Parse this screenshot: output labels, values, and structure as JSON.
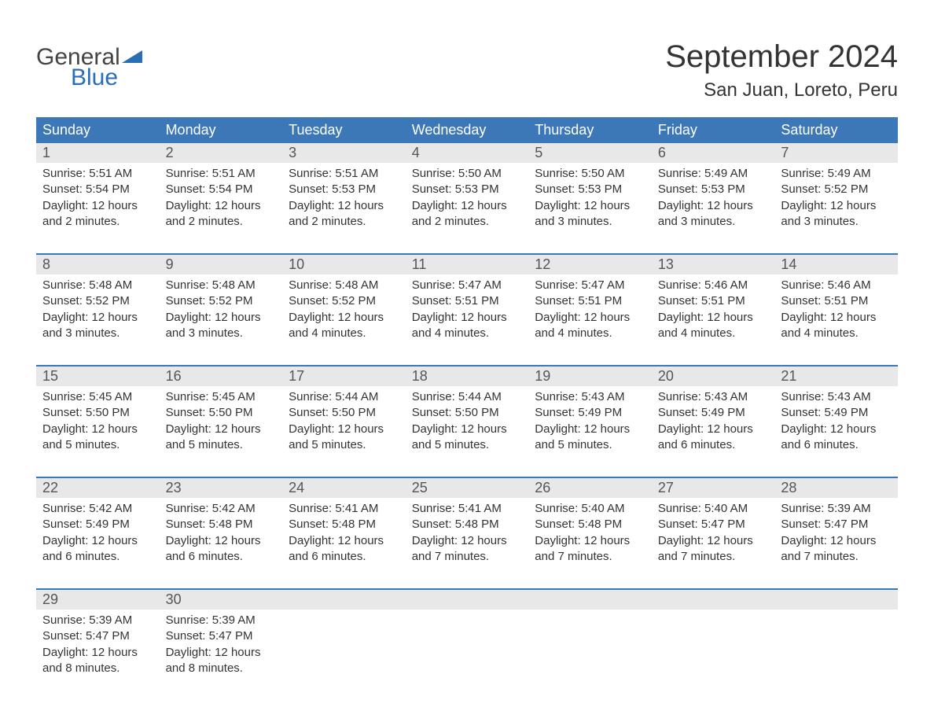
{
  "logo": {
    "general": "General",
    "blue": "Blue",
    "arrow_color": "#2a6eb8"
  },
  "title": "September 2024",
  "location": "San Juan, Loreto, Peru",
  "colors": {
    "header_bg": "#3c78b8",
    "header_text": "#ffffff",
    "daynum_bg": "#e8e8e8",
    "daynum_text": "#555555",
    "body_text": "#333333",
    "sep_line": "#3c78b8",
    "page_bg": "#ffffff"
  },
  "typography": {
    "month_title_fontsize": 40,
    "location_fontsize": 24,
    "day_header_fontsize": 18,
    "daynum_fontsize": 18,
    "body_fontsize": 15
  },
  "day_labels": [
    "Sunday",
    "Monday",
    "Tuesday",
    "Wednesday",
    "Thursday",
    "Friday",
    "Saturday"
  ],
  "weeks": [
    [
      {
        "num": "1",
        "sunrise": "Sunrise: 5:51 AM",
        "sunset": "Sunset: 5:54 PM",
        "daylight": "Daylight: 12 hours and 2 minutes."
      },
      {
        "num": "2",
        "sunrise": "Sunrise: 5:51 AM",
        "sunset": "Sunset: 5:54 PM",
        "daylight": "Daylight: 12 hours and 2 minutes."
      },
      {
        "num": "3",
        "sunrise": "Sunrise: 5:51 AM",
        "sunset": "Sunset: 5:53 PM",
        "daylight": "Daylight: 12 hours and 2 minutes."
      },
      {
        "num": "4",
        "sunrise": "Sunrise: 5:50 AM",
        "sunset": "Sunset: 5:53 PM",
        "daylight": "Daylight: 12 hours and 2 minutes."
      },
      {
        "num": "5",
        "sunrise": "Sunrise: 5:50 AM",
        "sunset": "Sunset: 5:53 PM",
        "daylight": "Daylight: 12 hours and 3 minutes."
      },
      {
        "num": "6",
        "sunrise": "Sunrise: 5:49 AM",
        "sunset": "Sunset: 5:53 PM",
        "daylight": "Daylight: 12 hours and 3 minutes."
      },
      {
        "num": "7",
        "sunrise": "Sunrise: 5:49 AM",
        "sunset": "Sunset: 5:52 PM",
        "daylight": "Daylight: 12 hours and 3 minutes."
      }
    ],
    [
      {
        "num": "8",
        "sunrise": "Sunrise: 5:48 AM",
        "sunset": "Sunset: 5:52 PM",
        "daylight": "Daylight: 12 hours and 3 minutes."
      },
      {
        "num": "9",
        "sunrise": "Sunrise: 5:48 AM",
        "sunset": "Sunset: 5:52 PM",
        "daylight": "Daylight: 12 hours and 3 minutes."
      },
      {
        "num": "10",
        "sunrise": "Sunrise: 5:48 AM",
        "sunset": "Sunset: 5:52 PM",
        "daylight": "Daylight: 12 hours and 4 minutes."
      },
      {
        "num": "11",
        "sunrise": "Sunrise: 5:47 AM",
        "sunset": "Sunset: 5:51 PM",
        "daylight": "Daylight: 12 hours and 4 minutes."
      },
      {
        "num": "12",
        "sunrise": "Sunrise: 5:47 AM",
        "sunset": "Sunset: 5:51 PM",
        "daylight": "Daylight: 12 hours and 4 minutes."
      },
      {
        "num": "13",
        "sunrise": "Sunrise: 5:46 AM",
        "sunset": "Sunset: 5:51 PM",
        "daylight": "Daylight: 12 hours and 4 minutes."
      },
      {
        "num": "14",
        "sunrise": "Sunrise: 5:46 AM",
        "sunset": "Sunset: 5:51 PM",
        "daylight": "Daylight: 12 hours and 4 minutes."
      }
    ],
    [
      {
        "num": "15",
        "sunrise": "Sunrise: 5:45 AM",
        "sunset": "Sunset: 5:50 PM",
        "daylight": "Daylight: 12 hours and 5 minutes."
      },
      {
        "num": "16",
        "sunrise": "Sunrise: 5:45 AM",
        "sunset": "Sunset: 5:50 PM",
        "daylight": "Daylight: 12 hours and 5 minutes."
      },
      {
        "num": "17",
        "sunrise": "Sunrise: 5:44 AM",
        "sunset": "Sunset: 5:50 PM",
        "daylight": "Daylight: 12 hours and 5 minutes."
      },
      {
        "num": "18",
        "sunrise": "Sunrise: 5:44 AM",
        "sunset": "Sunset: 5:50 PM",
        "daylight": "Daylight: 12 hours and 5 minutes."
      },
      {
        "num": "19",
        "sunrise": "Sunrise: 5:43 AM",
        "sunset": "Sunset: 5:49 PM",
        "daylight": "Daylight: 12 hours and 5 minutes."
      },
      {
        "num": "20",
        "sunrise": "Sunrise: 5:43 AM",
        "sunset": "Sunset: 5:49 PM",
        "daylight": "Daylight: 12 hours and 6 minutes."
      },
      {
        "num": "21",
        "sunrise": "Sunrise: 5:43 AM",
        "sunset": "Sunset: 5:49 PM",
        "daylight": "Daylight: 12 hours and 6 minutes."
      }
    ],
    [
      {
        "num": "22",
        "sunrise": "Sunrise: 5:42 AM",
        "sunset": "Sunset: 5:49 PM",
        "daylight": "Daylight: 12 hours and 6 minutes."
      },
      {
        "num": "23",
        "sunrise": "Sunrise: 5:42 AM",
        "sunset": "Sunset: 5:48 PM",
        "daylight": "Daylight: 12 hours and 6 minutes."
      },
      {
        "num": "24",
        "sunrise": "Sunrise: 5:41 AM",
        "sunset": "Sunset: 5:48 PM",
        "daylight": "Daylight: 12 hours and 6 minutes."
      },
      {
        "num": "25",
        "sunrise": "Sunrise: 5:41 AM",
        "sunset": "Sunset: 5:48 PM",
        "daylight": "Daylight: 12 hours and 7 minutes."
      },
      {
        "num": "26",
        "sunrise": "Sunrise: 5:40 AM",
        "sunset": "Sunset: 5:48 PM",
        "daylight": "Daylight: 12 hours and 7 minutes."
      },
      {
        "num": "27",
        "sunrise": "Sunrise: 5:40 AM",
        "sunset": "Sunset: 5:47 PM",
        "daylight": "Daylight: 12 hours and 7 minutes."
      },
      {
        "num": "28",
        "sunrise": "Sunrise: 5:39 AM",
        "sunset": "Sunset: 5:47 PM",
        "daylight": "Daylight: 12 hours and 7 minutes."
      }
    ],
    [
      {
        "num": "29",
        "sunrise": "Sunrise: 5:39 AM",
        "sunset": "Sunset: 5:47 PM",
        "daylight": "Daylight: 12 hours and 8 minutes."
      },
      {
        "num": "30",
        "sunrise": "Sunrise: 5:39 AM",
        "sunset": "Sunset: 5:47 PM",
        "daylight": "Daylight: 12 hours and 8 minutes."
      },
      null,
      null,
      null,
      null,
      null
    ]
  ]
}
